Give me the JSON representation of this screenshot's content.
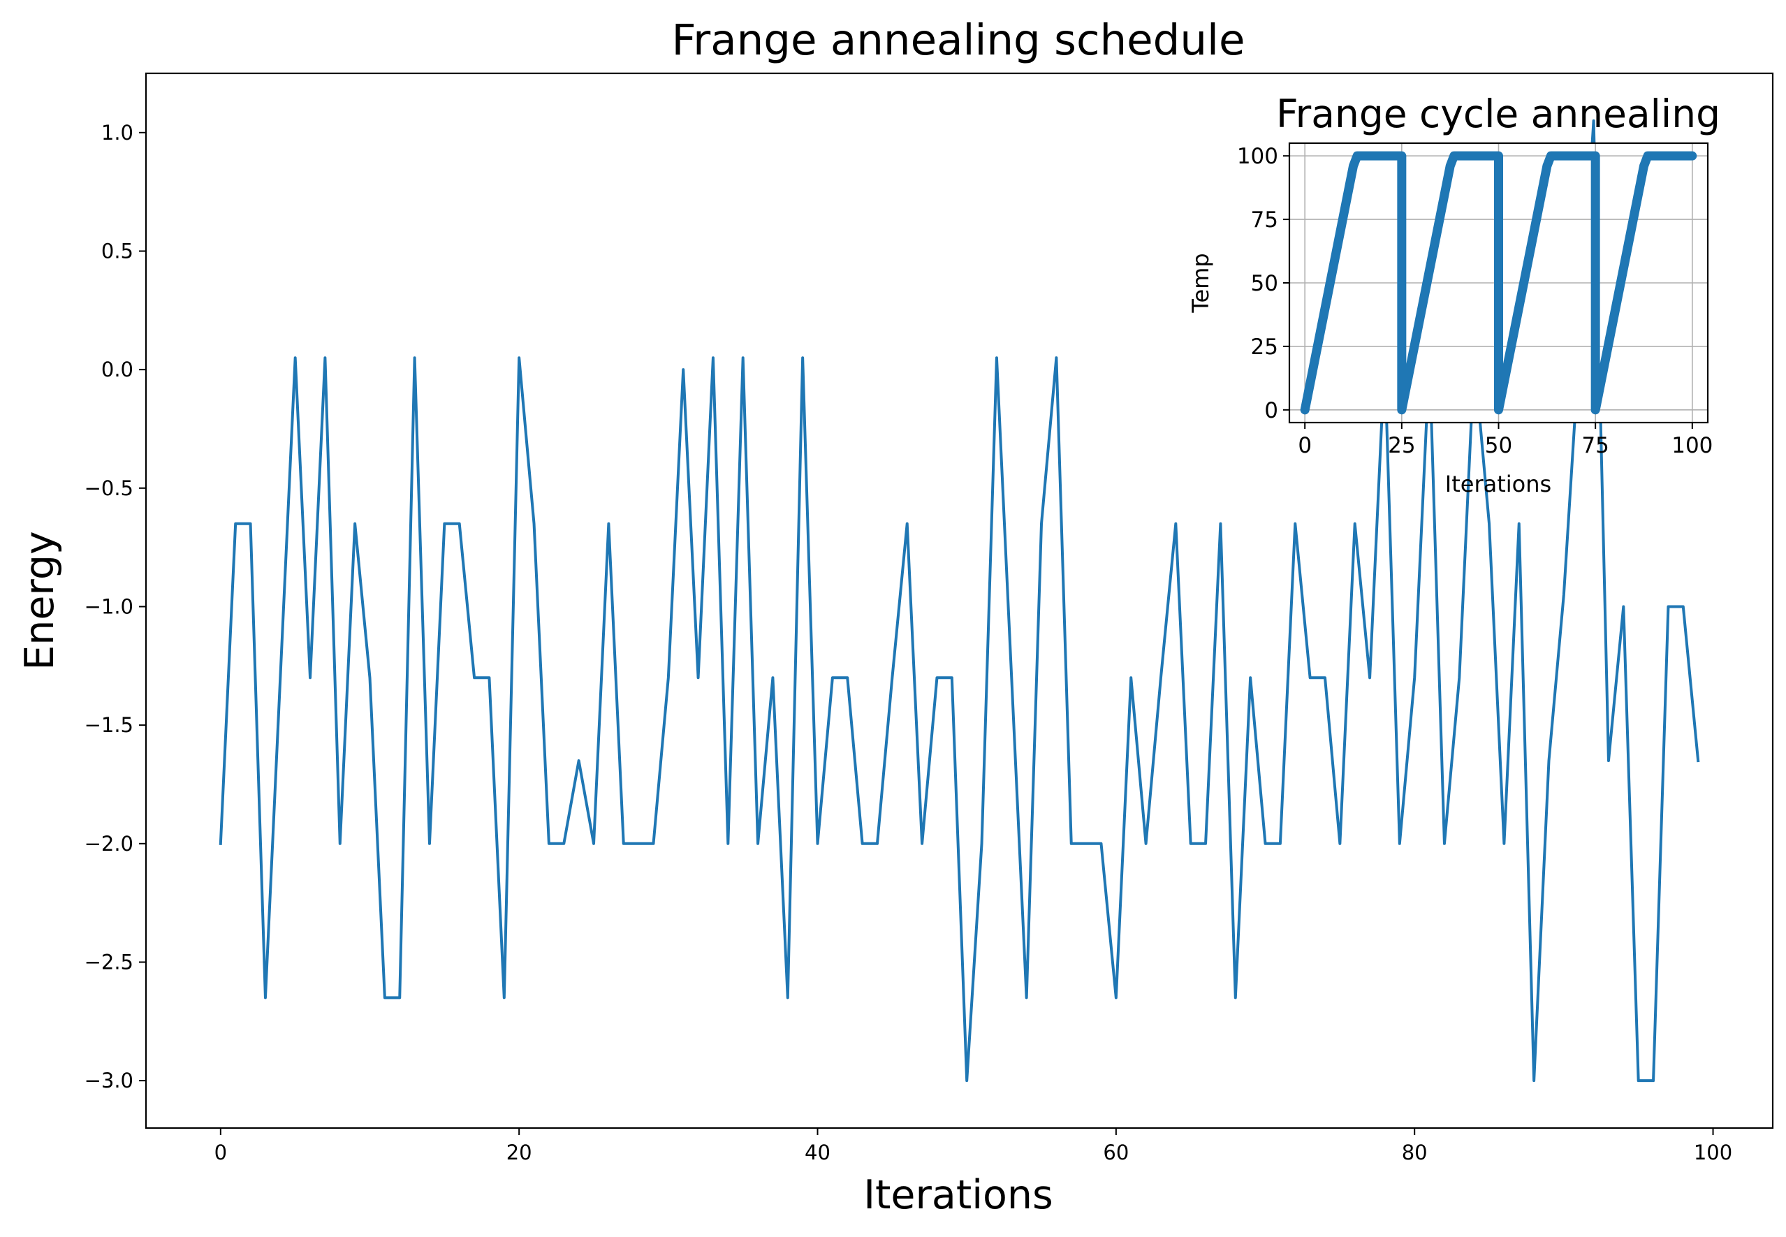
{
  "chart_data": [
    {
      "type": "line",
      "title": "Frange annealing schedule",
      "xlabel": "Iterations",
      "ylabel": "Energy",
      "xlim": [
        -5,
        104
      ],
      "ylim": [
        -3.2,
        1.25
      ],
      "xticks": [
        0,
        20,
        40,
        60,
        80,
        100
      ],
      "yticks": [
        1.0,
        0.5,
        0.0,
        -0.5,
        -1.0,
        -1.5,
        -2.0,
        -2.5,
        -3.0
      ],
      "ytick_labels": [
        "1.0",
        "0.5",
        "0.0",
        "−0.5",
        "−1.0",
        "−1.5",
        "−2.0",
        "−2.5",
        "−3.0"
      ],
      "grid": false,
      "color": "#1f77b4",
      "x": [
        0,
        1,
        2,
        3,
        4,
        5,
        6,
        7,
        8,
        9,
        10,
        11,
        12,
        13,
        14,
        15,
        16,
        17,
        18,
        19,
        20,
        21,
        22,
        23,
        24,
        25,
        26,
        27,
        28,
        29,
        30,
        31,
        32,
        33,
        34,
        35,
        36,
        37,
        38,
        39,
        40,
        41,
        42,
        43,
        44,
        45,
        46,
        47,
        48,
        49,
        50,
        51,
        52,
        53,
        54,
        55,
        56,
        57,
        58,
        59,
        60,
        61,
        62,
        63,
        64,
        65,
        66,
        67,
        68,
        69,
        70,
        71,
        72,
        73,
        74,
        75,
        76,
        77,
        78,
        79,
        80,
        81,
        82,
        83,
        84,
        85,
        86,
        87,
        88,
        89,
        90,
        91,
        92,
        93,
        94,
        95,
        96,
        97,
        98,
        99
      ],
      "y": [
        -2.0,
        -0.65,
        -0.65,
        -2.65,
        -1.3,
        0.05,
        -1.3,
        0.05,
        -2.0,
        -0.65,
        -1.3,
        -2.65,
        -2.65,
        0.05,
        -2.0,
        -0.65,
        -0.65,
        -1.3,
        -1.3,
        -2.65,
        0.05,
        -0.65,
        -2.0,
        -2.0,
        -1.65,
        -2.0,
        -0.65,
        -2.0,
        -2.0,
        -2.0,
        -1.3,
        0.0,
        -1.3,
        0.05,
        -2.0,
        0.05,
        -2.0,
        -1.3,
        -2.65,
        0.05,
        -2.0,
        -1.3,
        -1.3,
        -2.0,
        -2.0,
        -1.3,
        -0.65,
        -2.0,
        -1.3,
        -1.3,
        -3.0,
        -2.0,
        0.05,
        -1.3,
        -2.65,
        -0.65,
        0.05,
        -2.0,
        -2.0,
        -2.0,
        -2.65,
        -1.3,
        -2.0,
        -1.3,
        -0.65,
        -2.0,
        -2.0,
        -0.65,
        -2.65,
        -1.3,
        -2.0,
        -2.0,
        -0.65,
        -1.3,
        -1.3,
        -2.0,
        -0.65,
        -1.3,
        0.05,
        -2.0,
        -1.3,
        0.05,
        -2.0,
        -1.3,
        0.05,
        -0.65,
        -2.0,
        -0.65,
        -3.0,
        -1.65,
        -0.95,
        0.05,
        1.05,
        -1.65,
        -1.0,
        -3.0,
        -3.0,
        -1.0,
        -1.0,
        -1.65
      ]
    },
    {
      "type": "line",
      "title": "Frange cycle annealing",
      "xlabel": "Iterations",
      "ylabel": "Temp",
      "xlim": [
        -4,
        104
      ],
      "ylim": [
        -5,
        105
      ],
      "xticks": [
        0,
        25,
        50,
        75,
        100
      ],
      "yticks": [
        100,
        75,
        50,
        25,
        0
      ],
      "grid": true,
      "color": "#1f77b4",
      "x": [
        0,
        12.5,
        13.5,
        25,
        25,
        37.5,
        38.5,
        50,
        50,
        62.5,
        63.5,
        75,
        75,
        87.5,
        88.5,
        100
      ],
      "y": [
        0,
        96,
        100,
        100,
        0,
        96,
        100,
        100,
        0,
        96,
        100,
        100,
        0,
        96,
        100,
        100
      ]
    }
  ]
}
